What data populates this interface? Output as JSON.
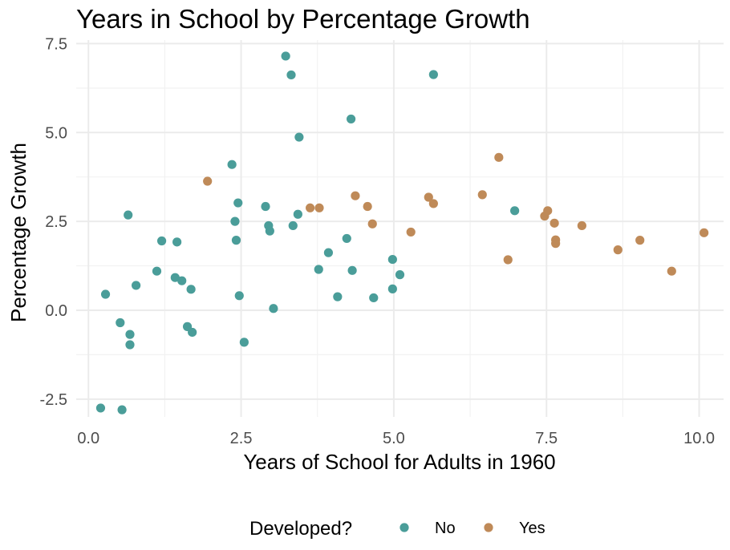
{
  "chart_data": {
    "type": "scatter",
    "title": "Years in School by Percentage Growth",
    "xlabel": "Years of School for Adults in 1960",
    "ylabel": "Percentage Growth",
    "xlim": [
      -0.2,
      10.4
    ],
    "ylim": [
      -3.0,
      7.6
    ],
    "x_ticks": [
      0,
      2.5,
      5,
      7.5,
      10
    ],
    "x_tick_labels": [
      "0.0",
      "2.5",
      "5.0",
      "7.5",
      "10.0"
    ],
    "y_ticks": [
      -2.5,
      0,
      2.5,
      5,
      7.5
    ],
    "y_tick_labels": [
      "-2.5",
      "0.0",
      "2.5",
      "5.0",
      "7.5"
    ],
    "grid": true,
    "legend": {
      "title": "Developed?",
      "position": "bottom"
    },
    "series": [
      {
        "name": "No",
        "color": "#4a9d99",
        "points": [
          [
            0.2,
            -2.75
          ],
          [
            0.55,
            -2.8
          ],
          [
            0.28,
            0.45
          ],
          [
            0.52,
            -0.35
          ],
          [
            0.68,
            -0.68
          ],
          [
            0.68,
            -0.97
          ],
          [
            0.65,
            2.68
          ],
          [
            0.78,
            0.7
          ],
          [
            1.12,
            1.1
          ],
          [
            1.2,
            1.95
          ],
          [
            1.42,
            0.92
          ],
          [
            1.45,
            1.92
          ],
          [
            1.53,
            0.83
          ],
          [
            1.62,
            -0.46
          ],
          [
            1.68,
            0.59
          ],
          [
            1.7,
            -0.62
          ],
          [
            2.35,
            4.1
          ],
          [
            2.4,
            2.5
          ],
          [
            2.42,
            1.97
          ],
          [
            2.45,
            3.02
          ],
          [
            2.47,
            0.41
          ],
          [
            2.55,
            -0.9
          ],
          [
            2.9,
            2.92
          ],
          [
            2.95,
            2.38
          ],
          [
            2.97,
            2.23
          ],
          [
            3.03,
            0.05
          ],
          [
            3.23,
            7.15
          ],
          [
            3.32,
            6.62
          ],
          [
            3.35,
            2.38
          ],
          [
            3.43,
            2.7
          ],
          [
            3.45,
            4.87
          ],
          [
            3.77,
            1.15
          ],
          [
            3.93,
            1.62
          ],
          [
            4.08,
            0.38
          ],
          [
            4.23,
            2.02
          ],
          [
            4.3,
            5.38
          ],
          [
            4.32,
            1.12
          ],
          [
            4.67,
            0.35
          ],
          [
            4.98,
            1.43
          ],
          [
            4.98,
            0.6
          ],
          [
            5.1,
            1.0
          ],
          [
            5.65,
            6.63
          ],
          [
            6.98,
            2.8
          ]
        ]
      },
      {
        "name": "Yes",
        "color": "#bf8a58",
        "points": [
          [
            1.95,
            3.63
          ],
          [
            3.63,
            2.88
          ],
          [
            3.78,
            2.88
          ],
          [
            4.37,
            3.22
          ],
          [
            4.57,
            2.92
          ],
          [
            4.65,
            2.43
          ],
          [
            5.28,
            2.2
          ],
          [
            5.57,
            3.18
          ],
          [
            5.65,
            3.0
          ],
          [
            6.45,
            3.25
          ],
          [
            6.72,
            4.3
          ],
          [
            6.87,
            1.42
          ],
          [
            7.47,
            2.65
          ],
          [
            7.52,
            2.8
          ],
          [
            7.63,
            2.45
          ],
          [
            7.65,
            1.98
          ],
          [
            7.65,
            1.88
          ],
          [
            8.08,
            2.38
          ],
          [
            8.67,
            1.7
          ],
          [
            9.03,
            1.97
          ],
          [
            9.55,
            1.1
          ],
          [
            10.08,
            2.18
          ]
        ]
      }
    ]
  }
}
